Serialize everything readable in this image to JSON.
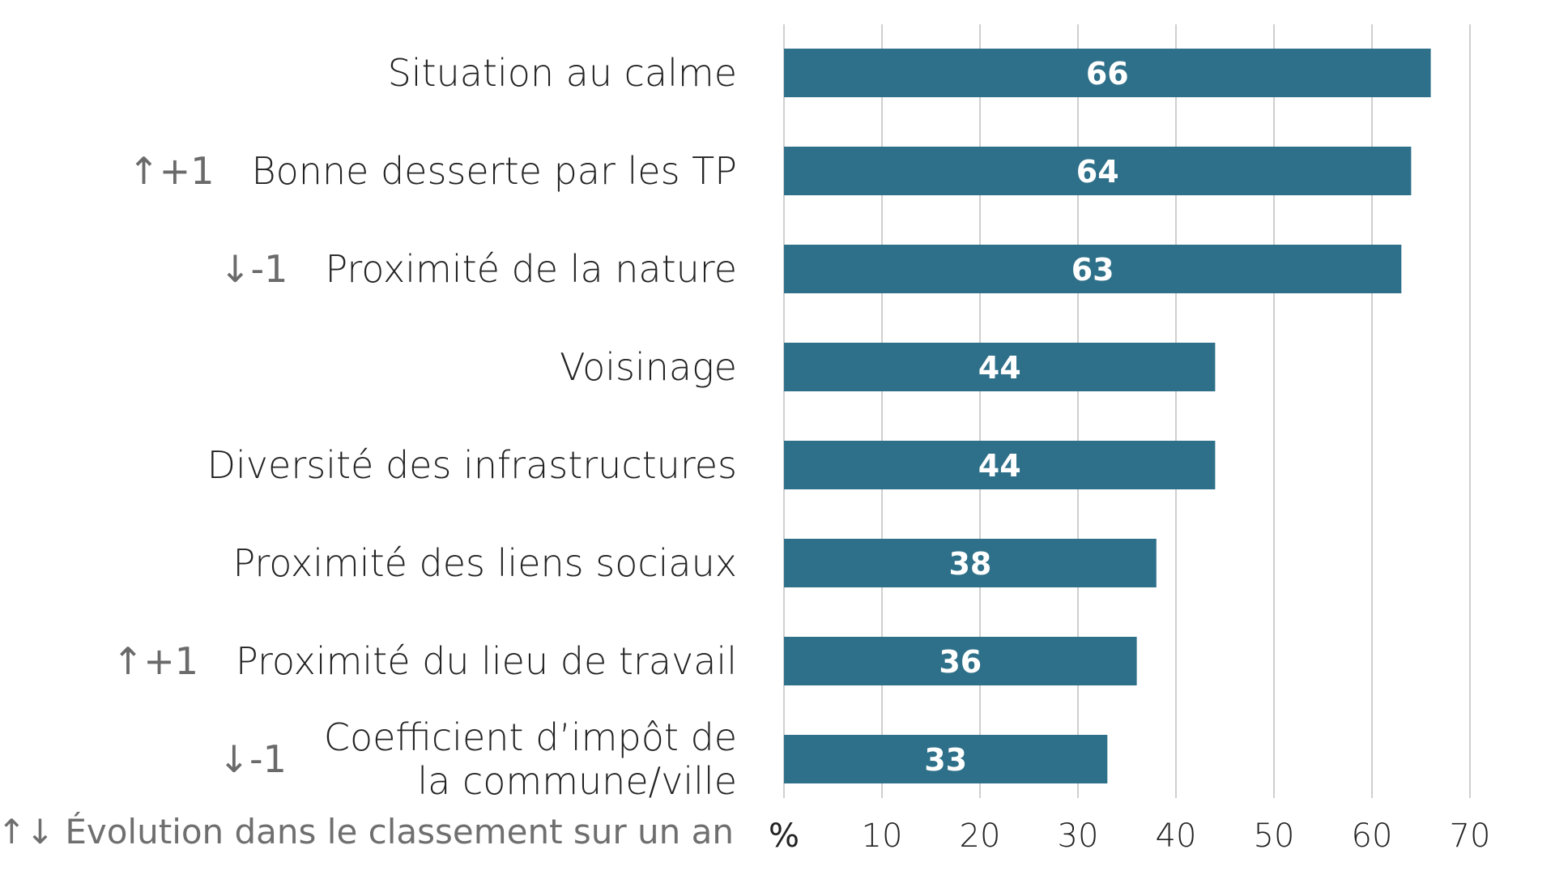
{
  "chart_data": {
    "type": "bar",
    "orientation": "horizontal",
    "categories": [
      "Situation au calme",
      "Bonne desserte par les TP",
      "Proximité de la nature",
      "Voisinage",
      "Diversité des infrastructures",
      "Proximité des liens sociaux",
      "Proximité du lieu de travail",
      "Coefficient d’impôt de\nla commune/ville"
    ],
    "values": [
      66,
      64,
      63,
      44,
      44,
      38,
      36,
      33
    ],
    "rank_change": [
      "",
      "↑+1",
      "↓-1",
      "",
      "",
      "",
      "↑+1",
      "↓-1"
    ],
    "xlabel": "%",
    "xlim": [
      0,
      70
    ],
    "xticks": [
      10,
      20,
      30,
      40,
      50,
      60,
      70
    ],
    "grid": "vertical",
    "data_labels": true,
    "bar_color": "#2e7089",
    "footnote": "↑↓ Évolution dans le classement sur un an"
  }
}
